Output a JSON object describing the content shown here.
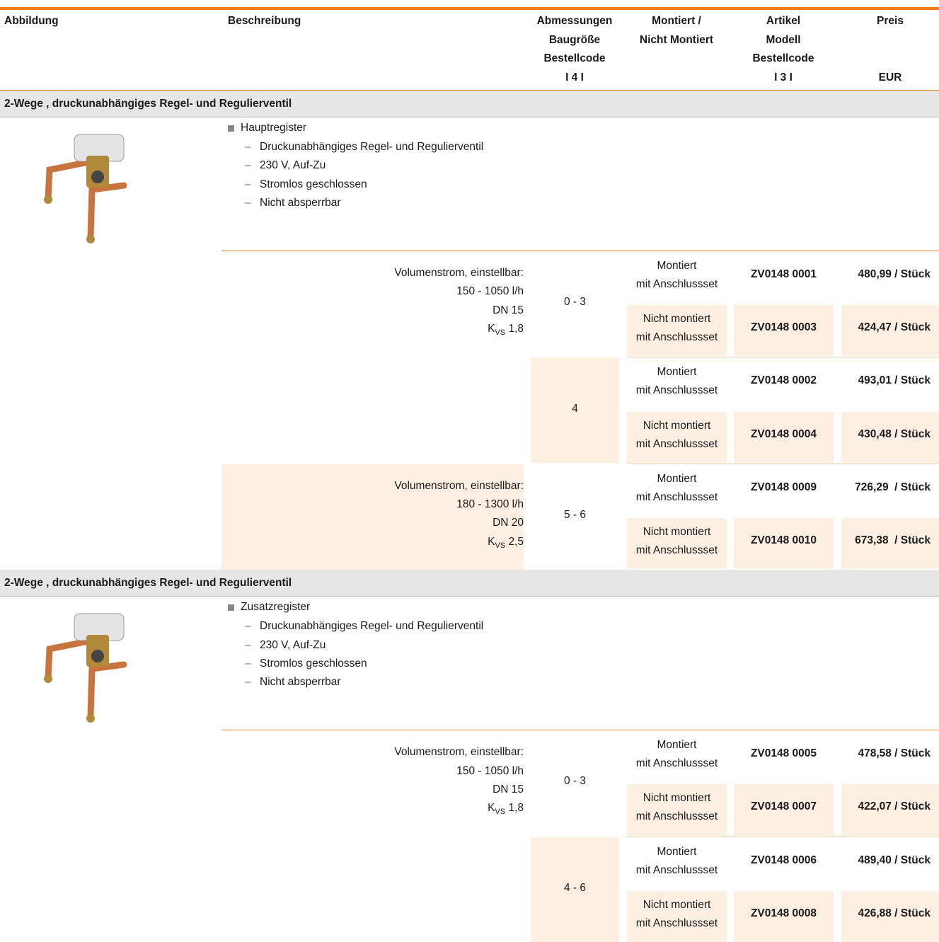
{
  "header": {
    "columns": [
      [
        "Abbildung"
      ],
      [
        "Beschreibung"
      ],
      [
        "Abmessungen",
        "Baugröße",
        "Bestellcode",
        "I 4 I"
      ],
      [
        "Montiert /",
        "Nicht Montiert"
      ],
      [
        "Artikel",
        "Modell",
        "Bestellcode",
        "I 3 I"
      ],
      [
        "Preis",
        "EUR"
      ]
    ]
  },
  "sections": [
    {
      "title": "2-Wege , druckunabhängiges Regel- und Regulierventil",
      "register": "Hauptregister",
      "features": [
        "Druckunabhängiges Regel- und Regulierventil",
        "230 V, Auf-Zu",
        "Stromlos geschlossen",
        "Nicht absperrbar"
      ],
      "blocks": [
        {
          "description": {
            "lines": [
              "Volumenstrom, einstellbar:",
              "150 - 1050 l/h",
              "DN 15"
            ],
            "kvs": {
              "symbol": "K",
              "subscript": "VS",
              "value": "1,8"
            }
          },
          "sizes": [
            {
              "size": "0 - 3",
              "rows": [
                {
                  "mounting": [
                    "Montiert",
                    "mit Anschlussset"
                  ],
                  "code": "ZV0148 0001",
                  "price": "480,99 / Stück"
                },
                {
                  "mounting": [
                    "Nicht montiert",
                    "mit Anschlussset"
                  ],
                  "code": "ZV0148 0003",
                  "price": "424,47 / Stück"
                }
              ]
            },
            {
              "size": "4",
              "rows": [
                {
                  "mounting": [
                    "Montiert",
                    "mit Anschlussset"
                  ],
                  "code": "ZV0148 0002",
                  "price": "493,01 / Stück"
                },
                {
                  "mounting": [
                    "Nicht montiert",
                    "mit Anschlussset"
                  ],
                  "code": "ZV0148 0004",
                  "price": "430,48 / Stück"
                }
              ]
            }
          ]
        },
        {
          "description": {
            "lines": [
              "Volumenstrom, einstellbar:",
              "180 - 1300 l/h",
              "DN 20"
            ],
            "kvs": {
              "symbol": "K",
              "subscript": "VS",
              "value": "2,5"
            }
          },
          "sizes": [
            {
              "size": "5 - 6",
              "rows": [
                {
                  "mounting": [
                    "Montiert",
                    "mit Anschlussset"
                  ],
                  "code": "ZV0148 0009",
                  "price": "726,29  / Stück"
                },
                {
                  "mounting": [
                    "Nicht montiert",
                    "mit Anschlussset"
                  ],
                  "code": "ZV0148 0010",
                  "price": "673,38  / Stück"
                }
              ]
            }
          ]
        }
      ]
    },
    {
      "title": "2-Wege , druckunabhängiges Regel- und Regulierventil",
      "register": "Zusatzregister",
      "features": [
        "Druckunabhängiges Regel- und Regulierventil",
        "230 V, Auf-Zu",
        "Stromlos geschlossen",
        "Nicht absperrbar"
      ],
      "blocks": [
        {
          "description": {
            "lines": [
              "Volumenstrom, einstellbar:",
              "150 - 1050 l/h",
              "DN 15"
            ],
            "kvs": {
              "symbol": "K",
              "subscript": "VS",
              "value": "1,8"
            }
          },
          "sizes": [
            {
              "size": "0 - 3",
              "rows": [
                {
                  "mounting": [
                    "Montiert",
                    "mit Anschlussset"
                  ],
                  "code": "ZV0148 0005",
                  "price": "478,58 / Stück"
                },
                {
                  "mounting": [
                    "Nicht montiert",
                    "mit Anschlussset"
                  ],
                  "code": "ZV0148 0007",
                  "price": "422,07 / Stück"
                }
              ]
            },
            {
              "size": "4 - 6",
              "rows": [
                {
                  "mounting": [
                    "Montiert",
                    "mit Anschlussset"
                  ],
                  "code": "ZV0148 0006",
                  "price": "489,40 / Stück"
                },
                {
                  "mounting": [
                    "Nicht montiert",
                    "mit Anschlussset"
                  ],
                  "code": "ZV0148 0008",
                  "price": "426,88 / Stück"
                }
              ]
            }
          ]
        }
      ]
    }
  ]
}
